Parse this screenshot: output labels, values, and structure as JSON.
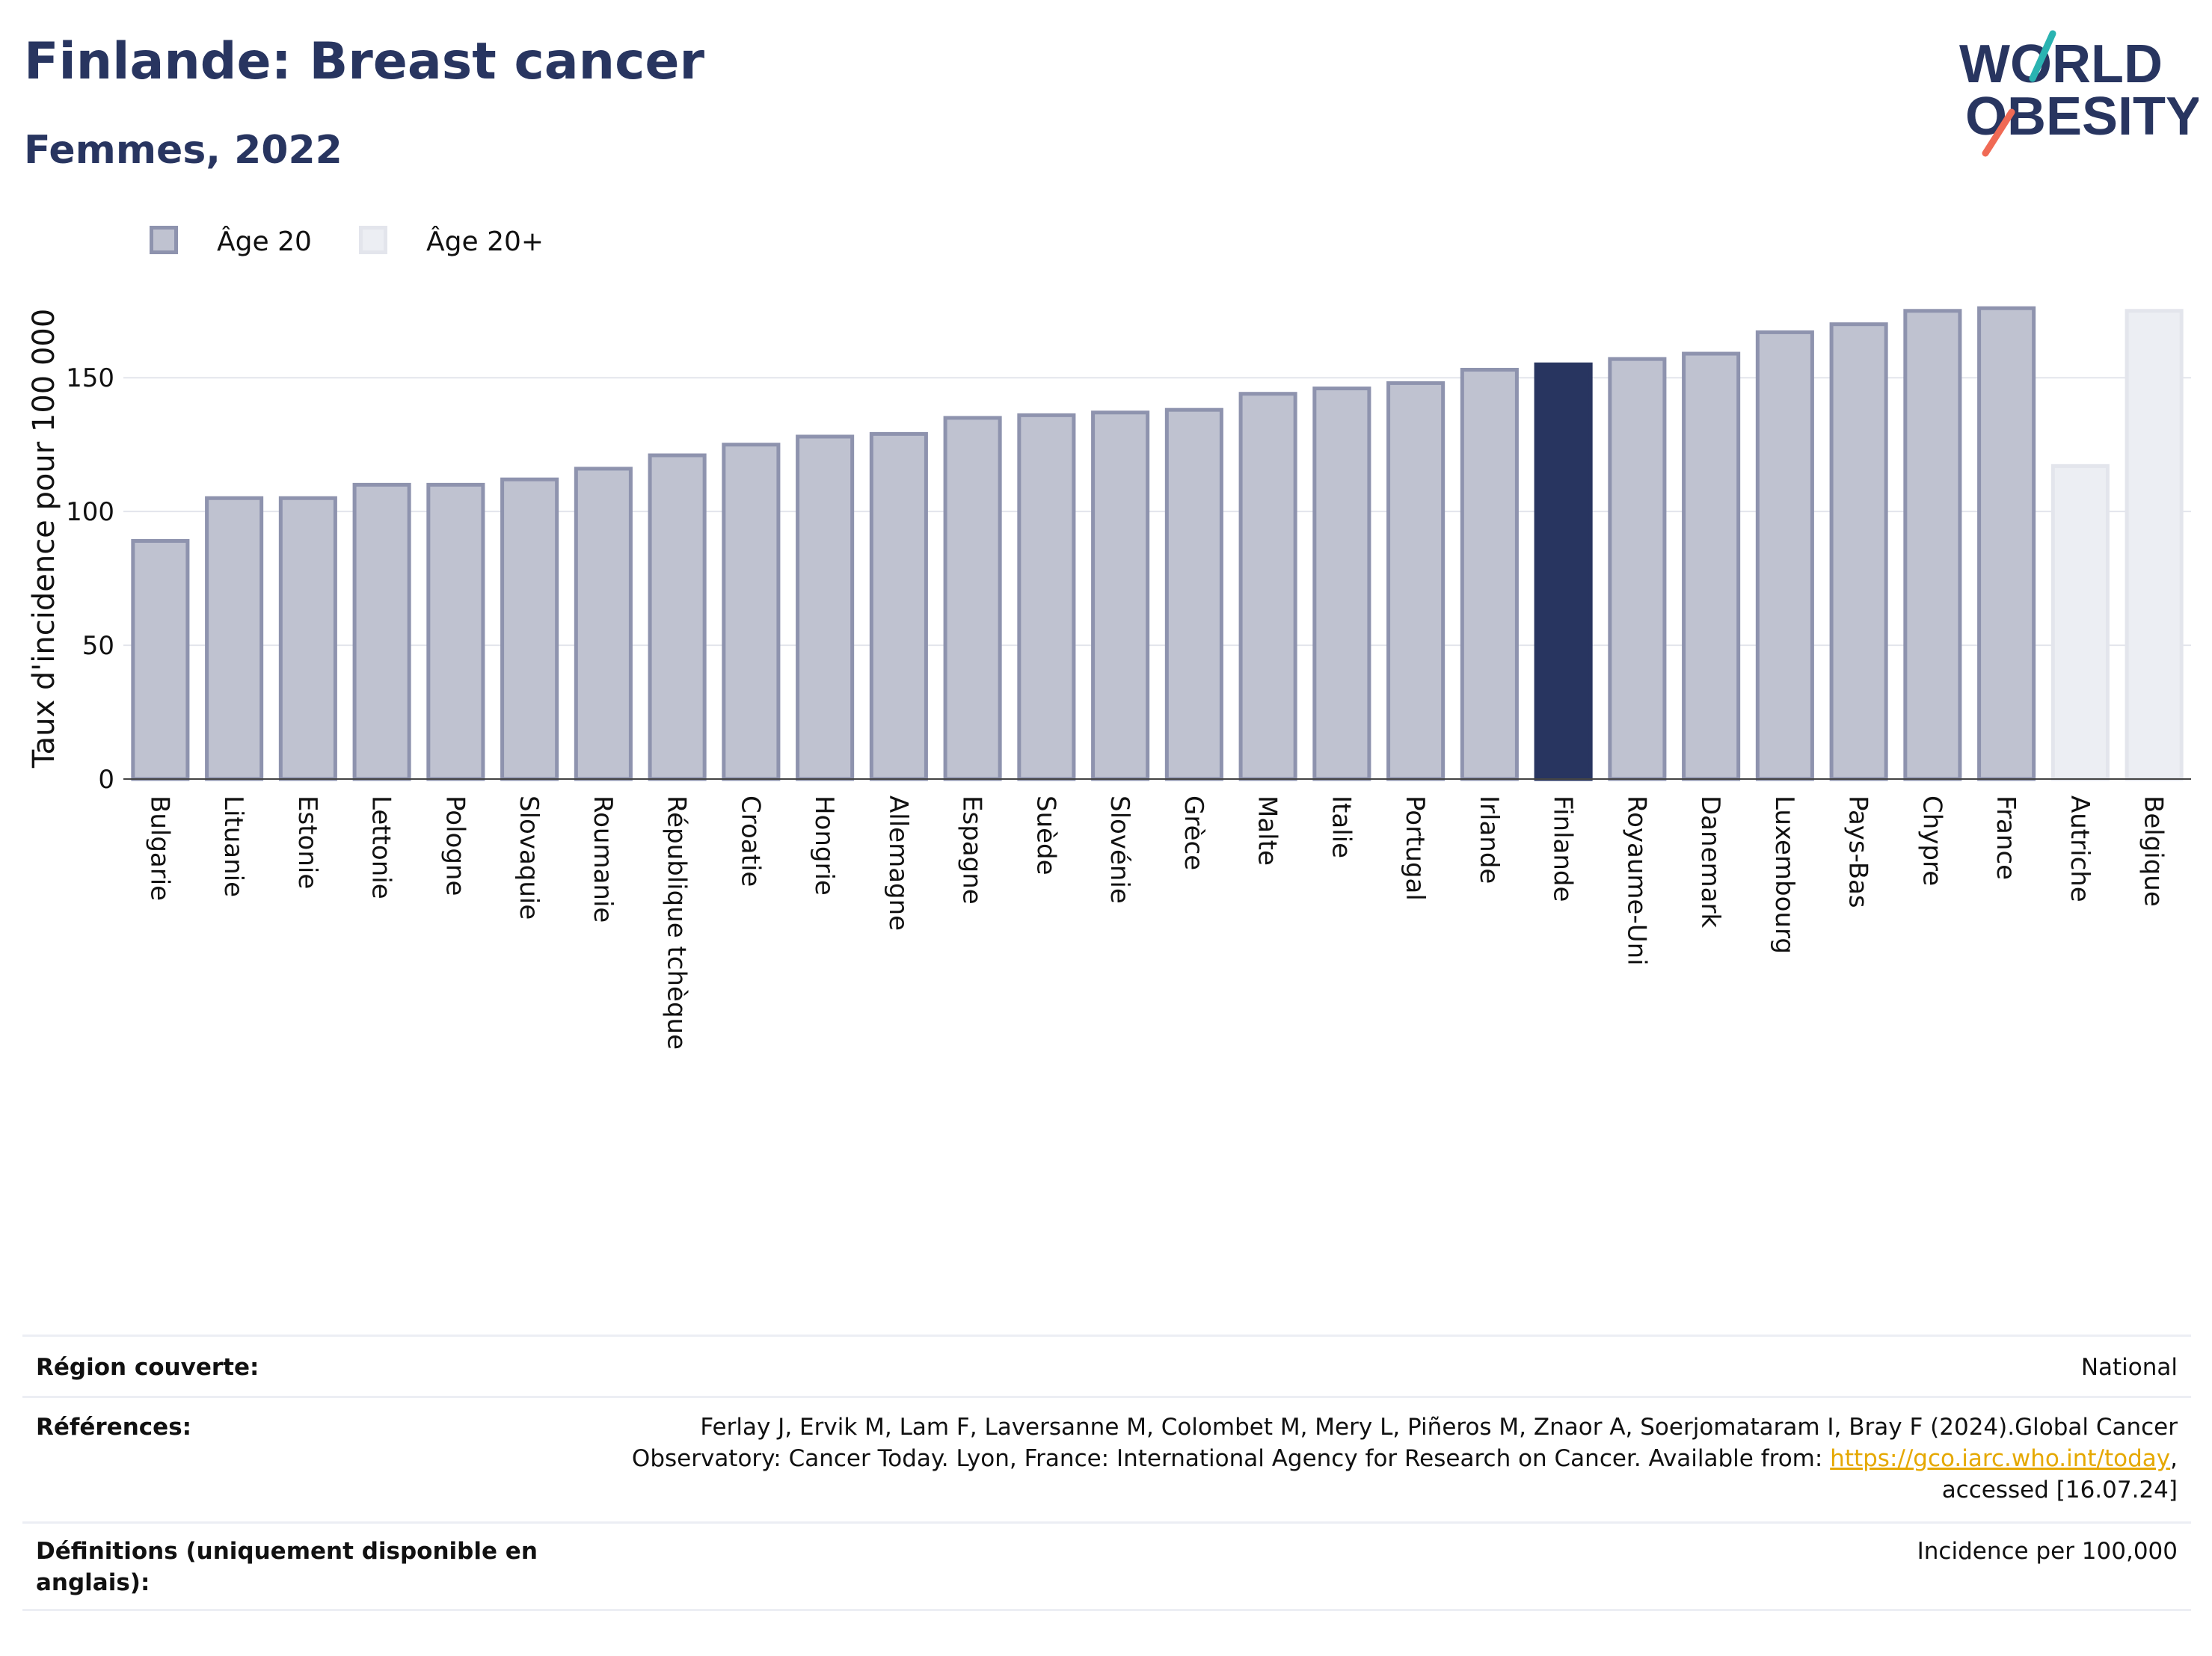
{
  "header": {
    "title": "Finlande: Breast cancer",
    "subtitle": "Femmes, 2022"
  },
  "logo": {
    "line1": "WORLD",
    "line2": "OBESITY"
  },
  "legend": {
    "items": [
      {
        "label": "Âge 20",
        "fill": "#bfc2d0",
        "stroke": "#8e93ae"
      },
      {
        "label": "Âge 20+",
        "fill": "#eceef3",
        "stroke": "#e3e5ec"
      }
    ]
  },
  "chart_data": {
    "type": "bar",
    "title": "Finlande: Breast cancer",
    "subtitle": "Femmes, 2022",
    "xlabel": "",
    "ylabel": "Taux d'incidence pour 100 000",
    "ylim": [
      0,
      185
    ],
    "yticks": [
      0,
      50,
      100,
      150
    ],
    "grid": true,
    "legend_position": "top-left",
    "highlight": "Finlande",
    "highlight_color": "#283560",
    "categories": [
      "Bulgarie",
      "Lituanie",
      "Estonie",
      "Lettonie",
      "Pologne",
      "Slovaquie",
      "Roumanie",
      "République tchèque",
      "Croatie",
      "Hongrie",
      "Allemagne",
      "Espagne",
      "Suède",
      "Slovénie",
      "Grèce",
      "Malte",
      "Italie",
      "Portugal",
      "Irlande",
      "Finlande",
      "Royaume-Uni",
      "Danemark",
      "Luxembourg",
      "Pays-Bas",
      "Chypre",
      "France",
      "Autriche",
      "Belgique"
    ],
    "values": [
      89,
      105,
      105,
      110,
      110,
      112,
      116,
      121,
      125,
      128,
      129,
      135,
      136,
      137,
      138,
      144,
      146,
      148,
      153,
      155,
      157,
      159,
      167,
      170,
      175,
      176,
      117,
      175
    ],
    "series_of_bar": [
      "Âge 20",
      "Âge 20",
      "Âge 20",
      "Âge 20",
      "Âge 20",
      "Âge 20",
      "Âge 20",
      "Âge 20",
      "Âge 20",
      "Âge 20",
      "Âge 20",
      "Âge 20",
      "Âge 20",
      "Âge 20",
      "Âge 20",
      "Âge 20",
      "Âge 20",
      "Âge 20",
      "Âge 20",
      "Âge 20",
      "Âge 20",
      "Âge 20",
      "Âge 20",
      "Âge 20",
      "Âge 20",
      "Âge 20",
      "Âge 20+",
      "Âge 20+"
    ]
  },
  "footer": {
    "rows": [
      {
        "label": "Région couverte:",
        "lines": [
          "National"
        ]
      },
      {
        "label": "Références:",
        "lines": [
          "Ferlay J, Ervik M, Lam F, Laversanne M, Colombet M, Mery L, Piñeros M, Znaor A, Soerjomataram I, Bray F (2024).Global Cancer",
          "Observatory: Cancer Today. Lyon, France: International Agency for Research on Cancer. Available from: ",
          "accessed [16.07.24]"
        ],
        "link": "https://gco.iarc.who.int/today"
      },
      {
        "label_lines": [
          "Définitions (uniquement disponible en",
          "anglais):"
        ],
        "lines": [
          "Incidence per 100,000"
        ]
      }
    ]
  }
}
